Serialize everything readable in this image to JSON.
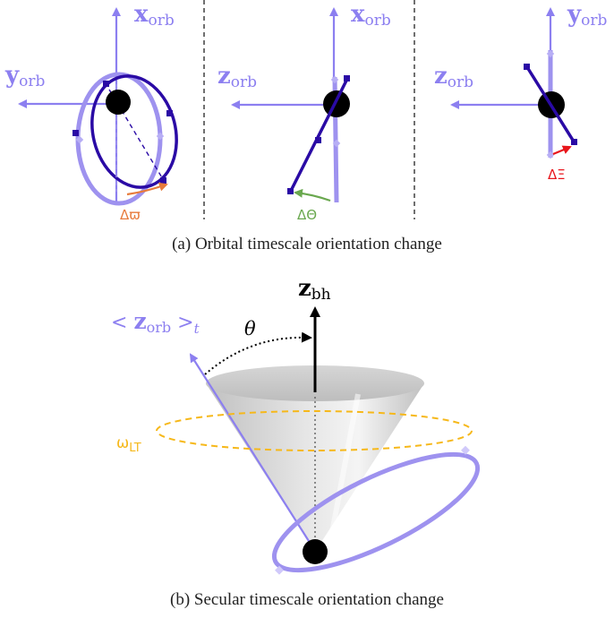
{
  "colors": {
    "light_orbit": "#9e92ef",
    "dark_orbit": "#2a0aa5",
    "axis": "#8c7ff0",
    "black_hole": "#000000",
    "orange": "#e77b3c",
    "green": "#6aa84f",
    "red": "#e8151b",
    "gold": "#f6b81a",
    "cone": "#cfcfcf"
  },
  "panel_a": {
    "p1": {
      "axis_up": {
        "main": "x",
        "sub": "orb"
      },
      "axis_left": {
        "main": "y",
        "sub": "orb"
      },
      "delta_label": "Δϖ"
    },
    "p2": {
      "axis_up": {
        "main": "x",
        "sub": "orb"
      },
      "axis_left": {
        "main": "z",
        "sub": "orb"
      },
      "delta_label": "ΔΘ"
    },
    "p3": {
      "axis_up": {
        "main": "y",
        "sub": "orb"
      },
      "axis_left": {
        "main": "z",
        "sub": "orb"
      },
      "delta_label": "ΔΞ"
    },
    "caption": "(a) Orbital timescale orientation change"
  },
  "panel_b": {
    "z_bh": {
      "main": "z",
      "sub": "bh"
    },
    "z_orb_avg": {
      "open": "<",
      "main": "z",
      "sub": "orb",
      "close": ">",
      "t": "t"
    },
    "theta": "θ",
    "omega": {
      "main": "ω",
      "sub": "LT"
    },
    "caption": "(b) Secular timescale orientation change"
  }
}
